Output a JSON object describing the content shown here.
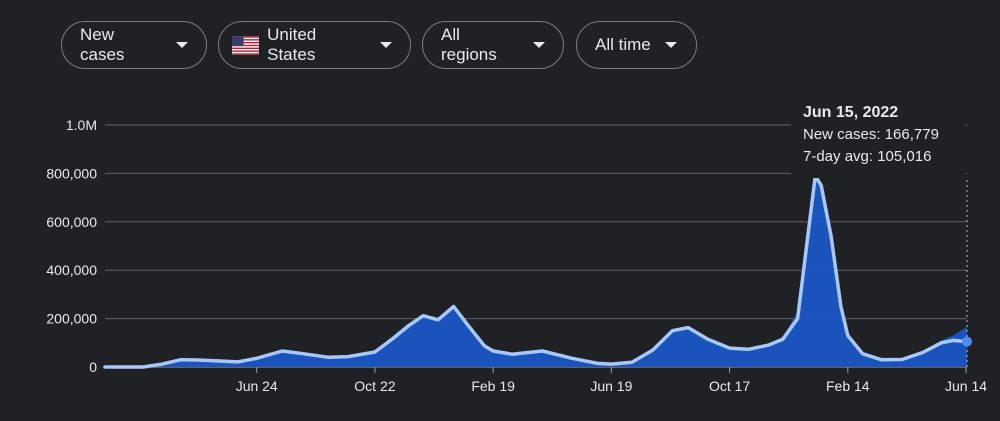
{
  "filters": {
    "metric": "New cases",
    "location": "United States",
    "region": "All regions",
    "period": "All time"
  },
  "tooltip": {
    "date": "Jun 15, 2022",
    "new_cases_line": "New cases: 166,779",
    "avg_line": "7-day avg: 105,016"
  },
  "chart_data": {
    "type": "bar",
    "title": "",
    "xlabel": "",
    "ylabel": "",
    "ylim": [
      0,
      1000000
    ],
    "y_ticks": [
      {
        "value": 0,
        "label": "0"
      },
      {
        "value": 200000,
        "label": "200,000"
      },
      {
        "value": 400000,
        "label": "400,000"
      },
      {
        "value": 600000,
        "label": "600,000"
      },
      {
        "value": 800000,
        "label": "800,000"
      },
      {
        "value": 1000000,
        "label": "1.0M"
      }
    ],
    "x_ticks": [
      {
        "label": "Jun 24",
        "date": "2020-06-24"
      },
      {
        "label": "Oct 22",
        "date": "2020-10-22"
      },
      {
        "label": "Feb 19",
        "date": "2021-02-19"
      },
      {
        "label": "Jun 19",
        "date": "2021-06-19"
      },
      {
        "label": "Oct 17",
        "date": "2021-10-17"
      },
      {
        "label": "Feb 14",
        "date": "2022-02-14"
      },
      {
        "label": "Jun 14",
        "date": "2022-06-14"
      }
    ],
    "x_range": [
      "2020-01-22",
      "2022-06-15"
    ],
    "series": [
      {
        "name": "New cases",
        "color": "#1a56c4",
        "points": [
          [
            "2020-01-22",
            0
          ],
          [
            "2020-03-01",
            100
          ],
          [
            "2020-03-20",
            15000
          ],
          [
            "2020-04-08",
            32000
          ],
          [
            "2020-04-25",
            30000
          ],
          [
            "2020-05-15",
            26000
          ],
          [
            "2020-06-05",
            22000
          ],
          [
            "2020-06-24",
            40000
          ],
          [
            "2020-07-20",
            70000
          ],
          [
            "2020-08-10",
            57000
          ],
          [
            "2020-09-05",
            42000
          ],
          [
            "2020-09-25",
            45000
          ],
          [
            "2020-10-22",
            68000
          ],
          [
            "2020-11-10",
            130000
          ],
          [
            "2020-11-25",
            180000
          ],
          [
            "2020-12-10",
            215000
          ],
          [
            "2020-12-25",
            205000
          ],
          [
            "2021-01-10",
            255000
          ],
          [
            "2021-01-25",
            180000
          ],
          [
            "2021-02-10",
            95000
          ],
          [
            "2021-02-19",
            68000
          ],
          [
            "2021-03-10",
            55000
          ],
          [
            "2021-04-10",
            68000
          ],
          [
            "2021-05-10",
            38000
          ],
          [
            "2021-06-05",
            16000
          ],
          [
            "2021-06-19",
            12000
          ],
          [
            "2021-07-10",
            22000
          ],
          [
            "2021-07-31",
            75000
          ],
          [
            "2021-08-20",
            150000
          ],
          [
            "2021-09-05",
            170000
          ],
          [
            "2021-09-25",
            120000
          ],
          [
            "2021-10-17",
            80000
          ],
          [
            "2021-11-05",
            72000
          ],
          [
            "2021-11-25",
            95000
          ],
          [
            "2021-12-10",
            120000
          ],
          [
            "2021-12-25",
            230000
          ],
          [
            "2022-01-05",
            600000
          ],
          [
            "2022-01-12",
            800000
          ],
          [
            "2022-01-18",
            760000
          ],
          [
            "2022-01-28",
            560000
          ],
          [
            "2022-02-07",
            260000
          ],
          [
            "2022-02-14",
            140000
          ],
          [
            "2022-03-01",
            60000
          ],
          [
            "2022-03-20",
            30000
          ],
          [
            "2022-04-10",
            32000
          ],
          [
            "2022-05-01",
            65000
          ],
          [
            "2022-05-20",
            110000
          ],
          [
            "2022-06-01",
            130000
          ],
          [
            "2022-06-15",
            166779
          ]
        ]
      },
      {
        "name": "7-day avg",
        "color": "#a8c7fa",
        "points": [
          [
            "2020-01-22",
            0
          ],
          [
            "2020-03-01",
            100
          ],
          [
            "2020-03-20",
            12000
          ],
          [
            "2020-04-08",
            30000
          ],
          [
            "2020-04-25",
            29000
          ],
          [
            "2020-05-15",
            25000
          ],
          [
            "2020-06-05",
            21000
          ],
          [
            "2020-06-24",
            36000
          ],
          [
            "2020-07-20",
            66000
          ],
          [
            "2020-08-10",
            55000
          ],
          [
            "2020-09-05",
            40000
          ],
          [
            "2020-09-25",
            43000
          ],
          [
            "2020-10-22",
            62000
          ],
          [
            "2020-11-10",
            120000
          ],
          [
            "2020-11-25",
            170000
          ],
          [
            "2020-12-10",
            212000
          ],
          [
            "2020-12-25",
            195000
          ],
          [
            "2021-01-10",
            250000
          ],
          [
            "2021-01-25",
            170000
          ],
          [
            "2021-02-10",
            88000
          ],
          [
            "2021-02-19",
            66000
          ],
          [
            "2021-03-10",
            53000
          ],
          [
            "2021-04-10",
            66000
          ],
          [
            "2021-05-10",
            36000
          ],
          [
            "2021-06-05",
            15000
          ],
          [
            "2021-06-19",
            12000
          ],
          [
            "2021-07-10",
            20000
          ],
          [
            "2021-07-31",
            70000
          ],
          [
            "2021-08-20",
            150000
          ],
          [
            "2021-09-05",
            163000
          ],
          [
            "2021-09-25",
            115000
          ],
          [
            "2021-10-17",
            78000
          ],
          [
            "2021-11-05",
            73000
          ],
          [
            "2021-11-25",
            90000
          ],
          [
            "2021-12-10",
            115000
          ],
          [
            "2021-12-25",
            200000
          ],
          [
            "2022-01-05",
            560000
          ],
          [
            "2022-01-12",
            790000
          ],
          [
            "2022-01-18",
            750000
          ],
          [
            "2022-01-28",
            540000
          ],
          [
            "2022-02-07",
            250000
          ],
          [
            "2022-02-14",
            130000
          ],
          [
            "2022-03-01",
            55000
          ],
          [
            "2022-03-20",
            30000
          ],
          [
            "2022-04-10",
            31000
          ],
          [
            "2022-05-01",
            60000
          ],
          [
            "2022-05-20",
            100000
          ],
          [
            "2022-06-01",
            110000
          ],
          [
            "2022-06-15",
            105016
          ]
        ]
      }
    ],
    "highlight": {
      "date": "2022-06-15",
      "value": 105016
    },
    "grid": true
  }
}
